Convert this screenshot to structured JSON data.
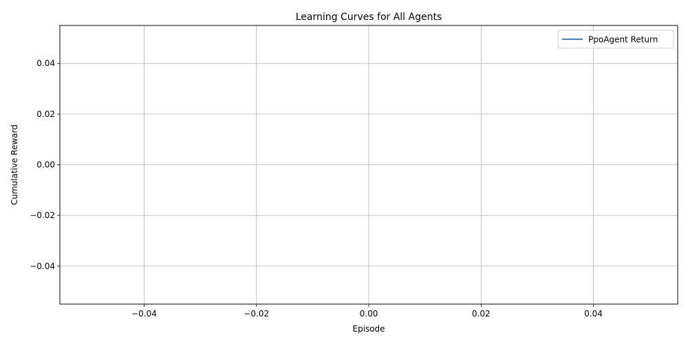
{
  "chart_data": {
    "type": "line",
    "title": "Learning Curves for All Agents",
    "xlabel": "Episode",
    "ylabel": "Cumulative Reward",
    "xlim": [
      -0.055,
      0.055
    ],
    "ylim": [
      -0.055,
      0.055
    ],
    "xticks": [
      -0.04,
      -0.02,
      0.0,
      0.02,
      0.04
    ],
    "yticks": [
      -0.04,
      -0.02,
      0.0,
      0.02,
      0.04
    ],
    "xtick_labels": [
      "−0.04",
      "−0.02",
      "0.00",
      "0.02",
      "0.04"
    ],
    "ytick_labels": [
      "−0.04",
      "−0.02",
      "0.00",
      "0.02",
      "0.04"
    ],
    "grid": true,
    "legend": {
      "position": "top-right"
    },
    "series": [
      {
        "name": "PpoAgent Return",
        "color": "#1f77b4",
        "x": [],
        "y": []
      }
    ]
  }
}
